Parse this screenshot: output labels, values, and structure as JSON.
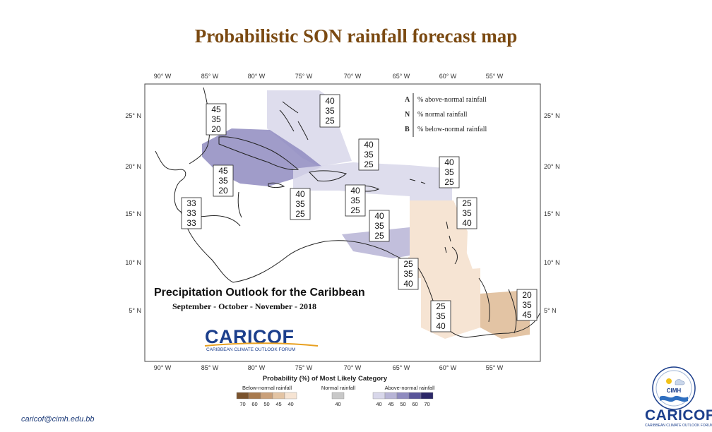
{
  "page": {
    "title": "Probabilistic SON rainfall forecast map",
    "email": "caricof@cimh.edu.bb"
  },
  "colors": {
    "title": "#7b4a12",
    "navy": "#1c3f8c"
  },
  "map": {
    "lon_labels": [
      "90° W",
      "85° W",
      "80° W",
      "75° W",
      "70° W",
      "65° W",
      "60° W",
      "55° W"
    ],
    "lat_labels": [
      "25° N",
      "20° N",
      "15° N",
      "10° N",
      "5° N"
    ],
    "legend_key": [
      {
        "letter": "A",
        "text": "% above-normal rainfall"
      },
      {
        "letter": "N",
        "text": "% normal rainfall"
      },
      {
        "letter": "B",
        "text": "% below-normal rainfall"
      }
    ],
    "outlook_title": "Precipitation Outlook for the Caribbean",
    "outlook_period": "September - October - November - 2018",
    "brand": {
      "name": "CariCOF",
      "name_display": "CARICOF",
      "subtitle": "CARIBBEAN CLIMATE OUTLOOK FORUM"
    },
    "probability_boxes": [
      {
        "region": "bahamas",
        "values": [
          "40",
          "35",
          "25"
        ]
      },
      {
        "region": "cayman",
        "values": [
          "45",
          "35",
          "20"
        ]
      },
      {
        "region": "cuba",
        "values": [
          "45",
          "35",
          "20"
        ]
      },
      {
        "region": "belize",
        "values": [
          "33",
          "33",
          "33"
        ]
      },
      {
        "region": "jamaica",
        "values": [
          "40",
          "35",
          "25"
        ]
      },
      {
        "region": "turks-caicos",
        "values": [
          "40",
          "35",
          "25"
        ]
      },
      {
        "region": "hispaniola",
        "values": [
          "40",
          "35",
          "25"
        ]
      },
      {
        "region": "leeward-islands",
        "values": [
          "40",
          "35",
          "25"
        ]
      },
      {
        "region": "windward-islands",
        "values": [
          "25",
          "35",
          "40"
        ]
      },
      {
        "region": "abc-islands",
        "values": [
          "40",
          "35",
          "25"
        ]
      },
      {
        "region": "trinidad",
        "values": [
          "25",
          "35",
          "40"
        ]
      },
      {
        "region": "guyana",
        "values": [
          "25",
          "35",
          "40"
        ]
      },
      {
        "region": "suriname-french-guiana",
        "values": [
          "20",
          "35",
          "45"
        ]
      }
    ],
    "category_scale": {
      "title": "Probability (%) of Most Likely Category",
      "groups": [
        {
          "label": "Below-normal rainfall",
          "ticks": [
            "70",
            "60",
            "50",
            "45",
            "40"
          ],
          "colors": [
            "#7a532d",
            "#a87a4e",
            "#c9a07a",
            "#e3c4a4",
            "#f6e4d3"
          ]
        },
        {
          "label": "Normal rainfall",
          "ticks": [
            "40"
          ],
          "colors": [
            "#c8c8c8"
          ]
        },
        {
          "label": "Above-normal rainfall",
          "ticks": [
            "40",
            "45",
            "50",
            "60",
            "70"
          ],
          "colors": [
            "#d8d7ea",
            "#b7b4d6",
            "#8f8bbf",
            "#59559a",
            "#2c2868"
          ]
        }
      ]
    }
  },
  "logos": {
    "cimh": "CIMH",
    "caricof_small": "CARICOF",
    "caricof_small_sub": "CARIBBEAN CLIMATE OUTLOOK FORUM"
  }
}
